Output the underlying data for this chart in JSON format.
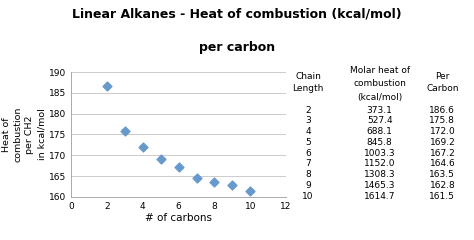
{
  "title_line1": "Linear Alkanes - Heat of combustion (kcal/mol)",
  "title_line2": "per carbon",
  "xlabel": "# of carbons",
  "ylabel": "Heat of\ncombustion\nper CH2\nin kcal/mol",
  "x_data": [
    2,
    3,
    4,
    5,
    6,
    7,
    8,
    9,
    10
  ],
  "y_data": [
    186.6,
    175.8,
    172.0,
    169.2,
    167.2,
    164.6,
    163.5,
    162.8,
    161.5
  ],
  "xlim": [
    0,
    12
  ],
  "ylim": [
    160.0,
    190.0
  ],
  "yticks": [
    160.0,
    165.0,
    170.0,
    175.0,
    180.0,
    185.0,
    190.0
  ],
  "xticks": [
    0,
    2,
    4,
    6,
    8,
    10,
    12
  ],
  "marker_color": "#6699CC",
  "marker": "D",
  "marker_size": 4.5,
  "background_color": "#ffffff",
  "table_chain": [
    2,
    3,
    4,
    5,
    6,
    7,
    8,
    9,
    10
  ],
  "table_molar": [
    "373.1",
    "527.4",
    "688.1",
    "845.8",
    "1003.3",
    "1152.0",
    "1308.3",
    "1465.3",
    "1614.7"
  ],
  "table_per_carbon": [
    "186.6",
    "175.8",
    "172.0",
    "169.2",
    "167.2",
    "164.6",
    "163.5",
    "162.8",
    "161.5"
  ],
  "col1_header1": "Chain",
  "col1_header2": "Length",
  "col2_header1": "Molar heat of",
  "col2_header2": "combustion",
  "col2_header3": "(kcal/mol)",
  "col3_header1": "Per",
  "col3_header2": "Carbon"
}
